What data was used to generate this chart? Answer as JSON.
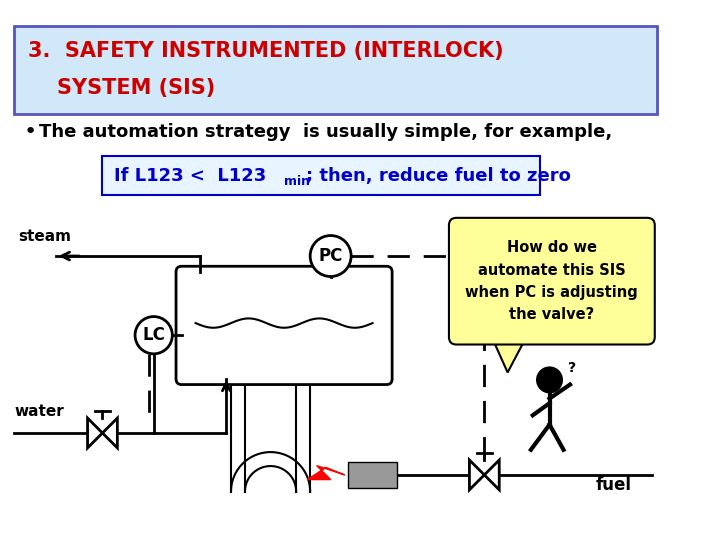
{
  "bg_color": "#ffffff",
  "header_bg": "#d0e8f8",
  "header_border": "#5555bb",
  "header_text_line1": "3.  SAFETY INSTRUMENTED (INTERLOCK)",
  "header_text_line2": "    SYSTEM (SIS)",
  "header_text_color": "#cc0000",
  "bullet_text": "The automation strategy  is usually simple, for example,",
  "bullet_text_color": "#000000",
  "formula_text_color": "#0000cc",
  "formula_bg": "#e8f4ff",
  "formula_border": "#0000cc",
  "callout_bg": "#ffff99",
  "callout_border": "#000000",
  "callout_text": "How do we\nautomate this SIS\nwhen PC is adjusting\nthe valve?",
  "callout_text_color": "#000000",
  "steam_label": "steam",
  "water_label": "water",
  "fuel_label": "fuel",
  "pc_label": "PC",
  "lc_label": "LC",
  "diagram_scale": 1.0
}
